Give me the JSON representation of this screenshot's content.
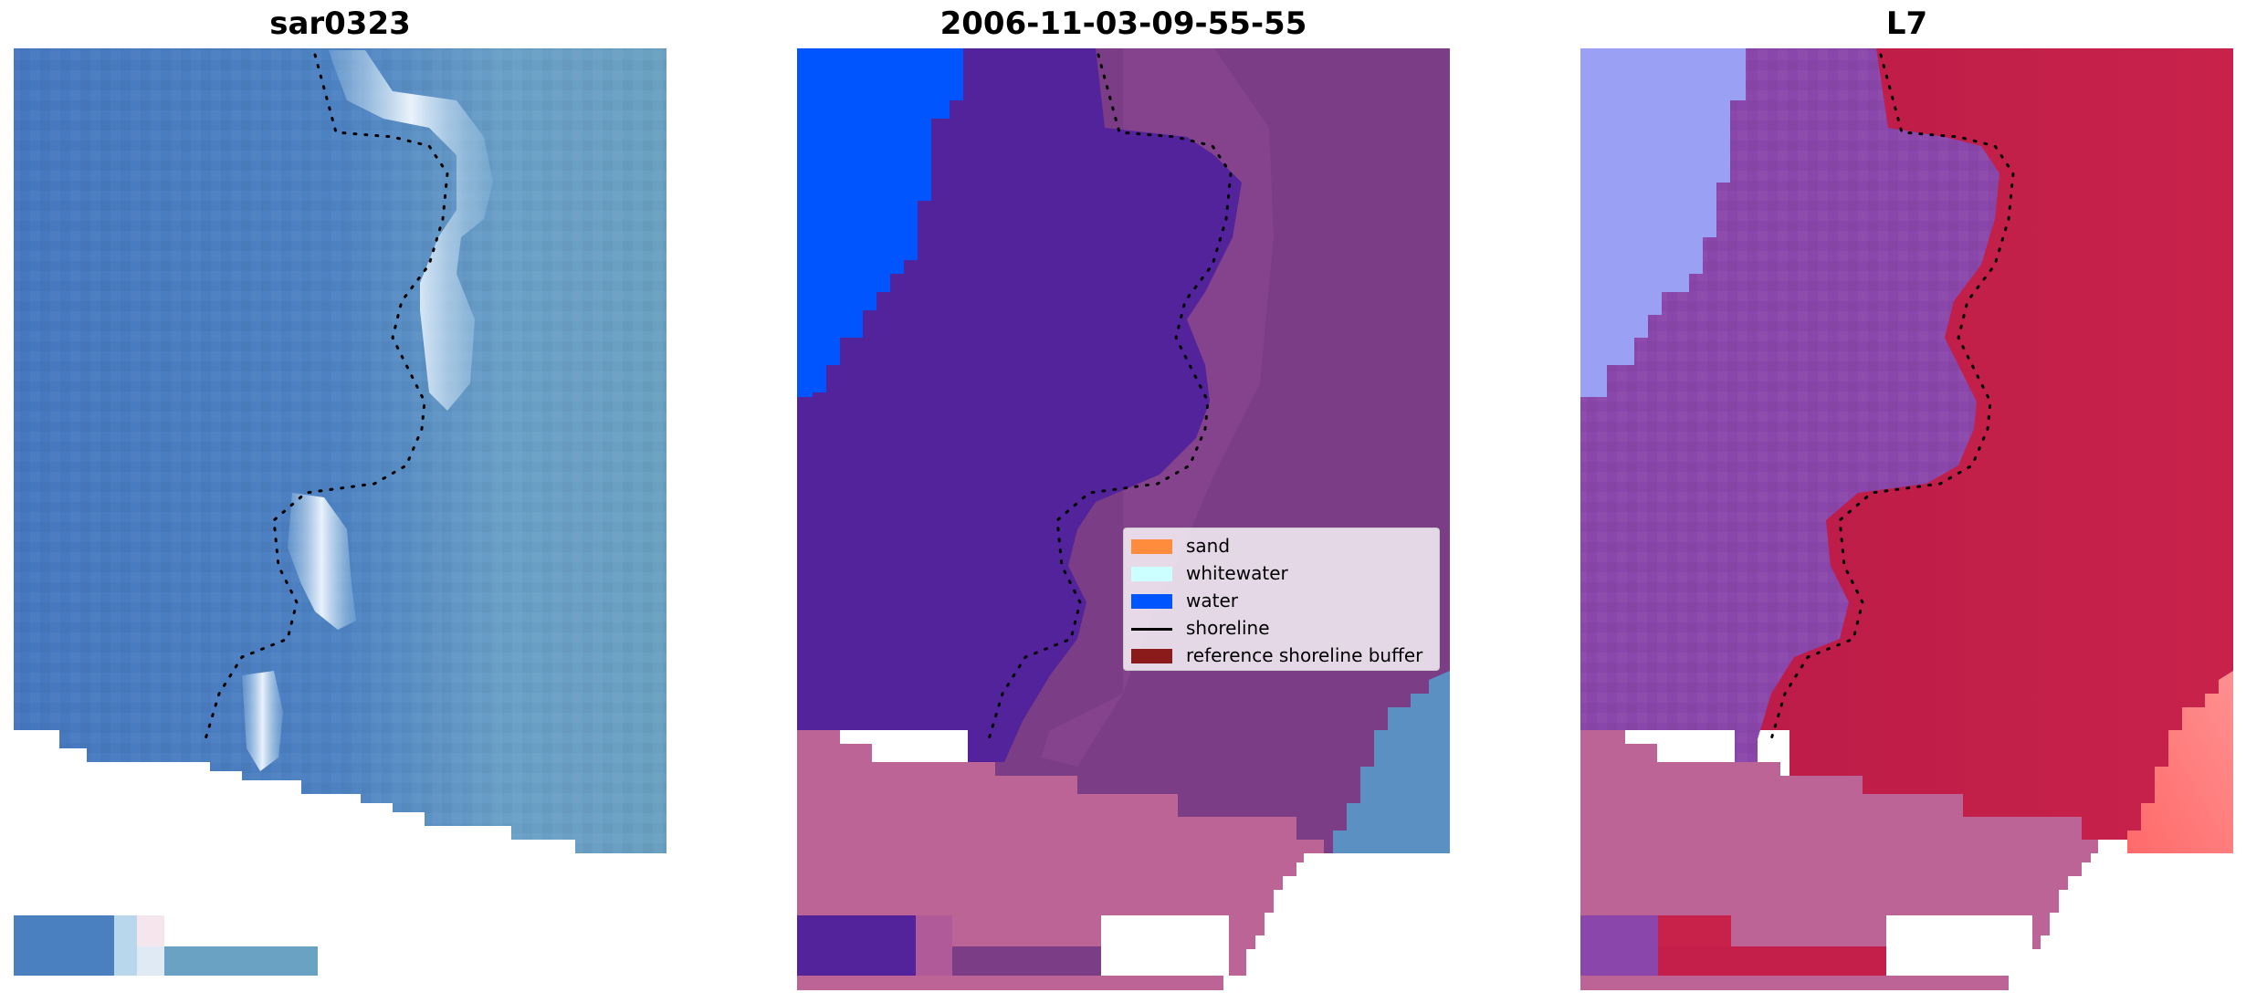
{
  "panels": {
    "left_title": "sar0323",
    "middle_title": "2006-11-03-09-55-55",
    "right_title": "L7"
  },
  "legend": {
    "items": [
      {
        "label": "sand",
        "color": "#ff8c3c",
        "kind": "patch"
      },
      {
        "label": "whitewater",
        "color": "#ccffff",
        "kind": "patch"
      },
      {
        "label": "water",
        "color": "#0055ff",
        "kind": "patch"
      },
      {
        "label": "shoreline",
        "color": "#000000",
        "kind": "line"
      },
      {
        "label": "reference shoreline buffer",
        "color": "#8b1a1a",
        "kind": "patch"
      }
    ]
  },
  "colors": {
    "rgb_sea": "#4a7fc0",
    "rgb_nearshore": "#6a9fc4",
    "rgb_whitewater": "#e8f2fa",
    "class_water_dark": "#52239a",
    "class_water": "#0055ff",
    "class_land": "#7a3c86",
    "class_buffer": "#bc6496",
    "mndwi_water": "#8a46aa",
    "mndwi_land": "#c41e4a",
    "mndwi_blue": "#9aa0f4",
    "mndwi_buffer": "#bc6496"
  }
}
